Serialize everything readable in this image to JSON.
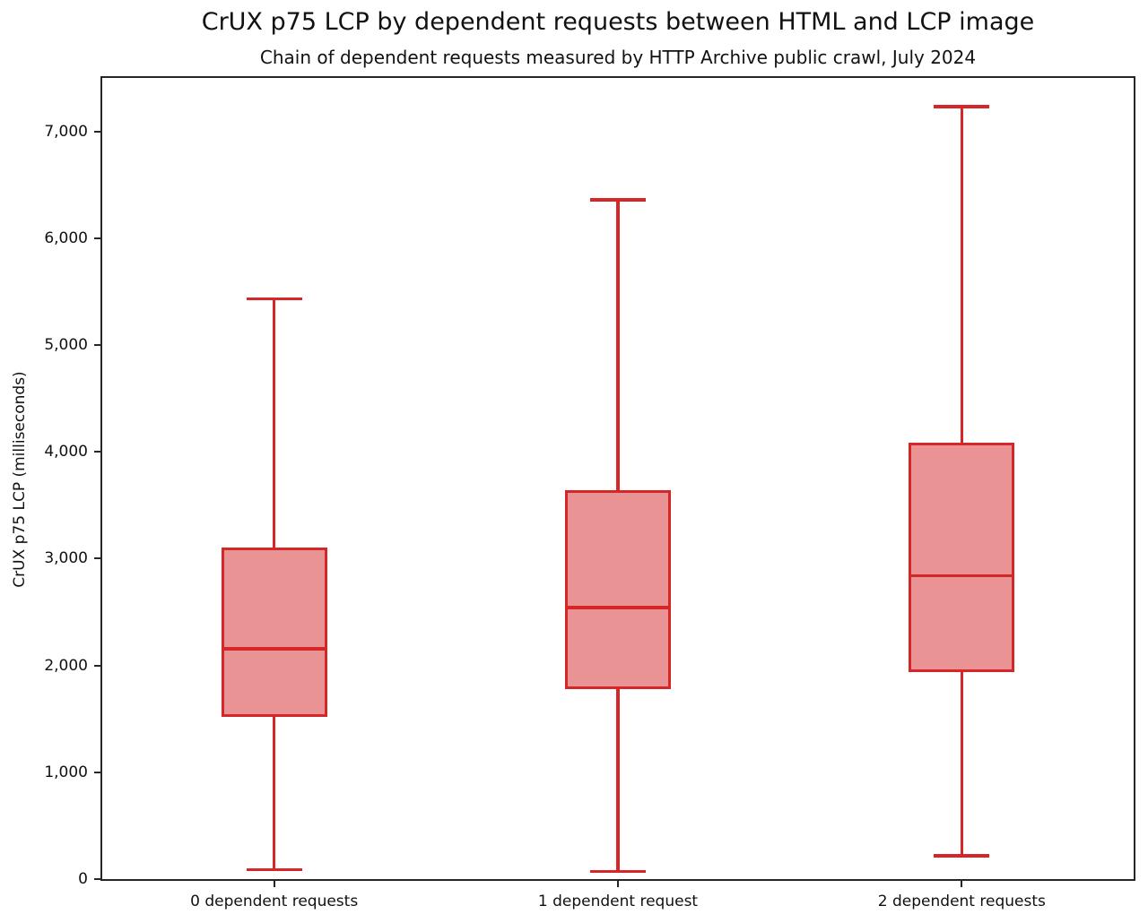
{
  "chart_data": {
    "type": "boxplot",
    "title": "CrUX p75 LCP by dependent requests between HTML and LCP image",
    "subtitle": "Chain of dependent requests measured by HTTP Archive public crawl, July 2024",
    "ylabel": "CrUX p75 LCP (milliseconds)",
    "xlabel": "",
    "categories": [
      "0 dependent requests",
      "1 dependent request",
      "2 dependent requests"
    ],
    "series": [
      {
        "category": "0 dependent requests",
        "whisker_low": 90,
        "q1": 1530,
        "median": 2155,
        "q3": 3090,
        "whisker_high": 5430
      },
      {
        "category": "1 dependent request",
        "whisker_low": 70,
        "q1": 1790,
        "median": 2540,
        "q3": 3630,
        "whisker_high": 6360
      },
      {
        "category": "2 dependent requests",
        "whisker_low": 220,
        "q1": 1950,
        "median": 2840,
        "q3": 4075,
        "whisker_high": 7230
      }
    ],
    "ylim": [
      0,
      7500
    ],
    "yticks": [
      0,
      1000,
      2000,
      3000,
      4000,
      5000,
      6000,
      7000
    ],
    "ytick_labels": [
      "0",
      "1,000",
      "2,000",
      "3,000",
      "4,000",
      "5,000",
      "6,000",
      "7,000"
    ],
    "grid": false,
    "legend": "none",
    "colors": {
      "box_edge": "#d62728",
      "box_fill": "#ea9394",
      "axis": "#262626",
      "text": "#111111"
    }
  }
}
